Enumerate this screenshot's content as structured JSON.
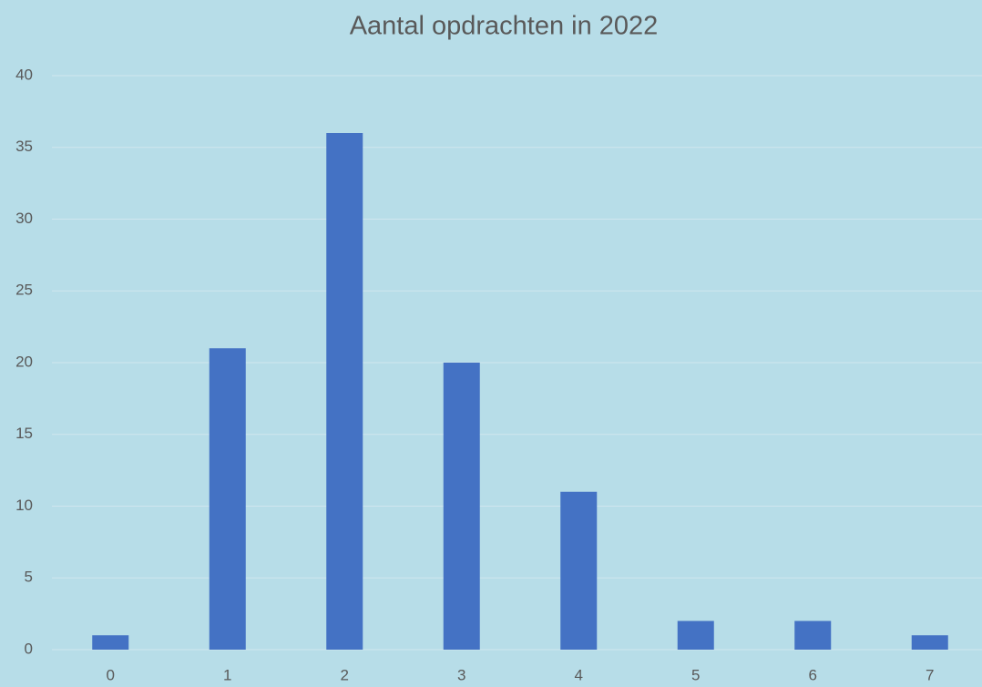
{
  "chart_data": {
    "type": "bar",
    "title": "Aantal opdrachten in 2022",
    "categories": [
      "0",
      "1",
      "2",
      "3",
      "4",
      "5",
      "6",
      "7"
    ],
    "values": [
      1,
      21,
      36,
      20,
      11,
      2,
      2,
      1
    ],
    "color": "#4472c4",
    "ylim": [
      0,
      40
    ],
    "yticks": [
      0,
      5,
      10,
      15,
      20,
      25,
      30,
      35,
      40
    ],
    "grid": true
  }
}
